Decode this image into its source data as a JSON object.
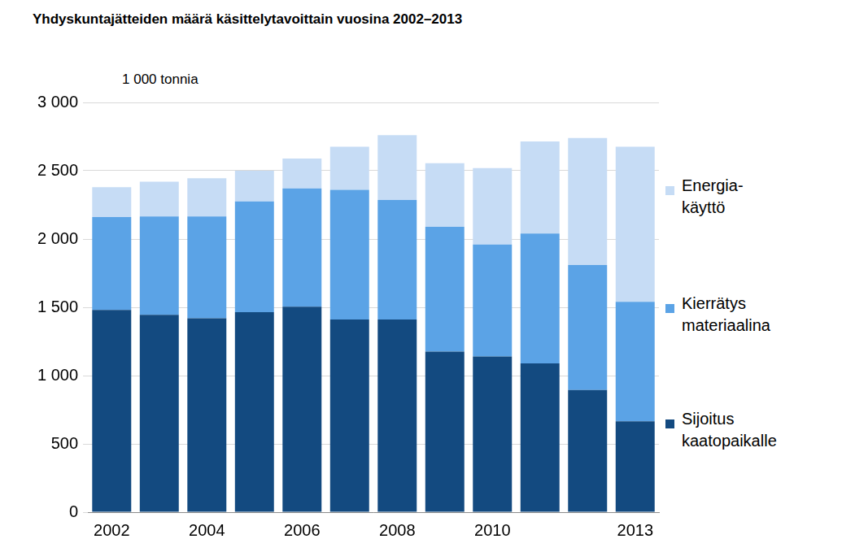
{
  "chart_data": {
    "type": "bar",
    "title": "Yhdyskuntajätteiden määrä käsittelytavoittain vuosina 2002–2013",
    "y_label": "1 000 tonnia",
    "categories": [
      "2002",
      null,
      "2004",
      null,
      "2006",
      null,
      "2008",
      null,
      "2010",
      null,
      null,
      "2013"
    ],
    "series": [
      {
        "name": "Sijoitus\nkaatopaikalle",
        "color": "#134a80",
        "values": [
          1480,
          1445,
          1420,
          1465,
          1505,
          1410,
          1410,
          1175,
          1140,
          1090,
          895,
          665
        ]
      },
      {
        "name": "Kierrätys\nmateriaalina",
        "color": "#5ba3e6",
        "values": [
          680,
          720,
          745,
          810,
          865,
          950,
          875,
          915,
          820,
          950,
          915,
          875
        ]
      },
      {
        "name": "Energia-\nkäyttö",
        "color": "#c6dcf5",
        "values": [
          220,
          255,
          280,
          225,
          220,
          315,
          475,
          465,
          560,
          675,
          930,
          1135
        ]
      }
    ],
    "ylim": [
      0,
      3000
    ],
    "yticks": [
      0,
      500,
      {
        "value": 1000,
        "label": "1 000"
      },
      {
        "value": 1500,
        "label": "1 500"
      },
      {
        "value": 2000,
        "label": "2 000"
      },
      {
        "value": 2500,
        "label": "2 500"
      },
      {
        "value": 3000,
        "label": "3 000"
      }
    ],
    "grid": true,
    "stacked": true,
    "legend": "right"
  }
}
